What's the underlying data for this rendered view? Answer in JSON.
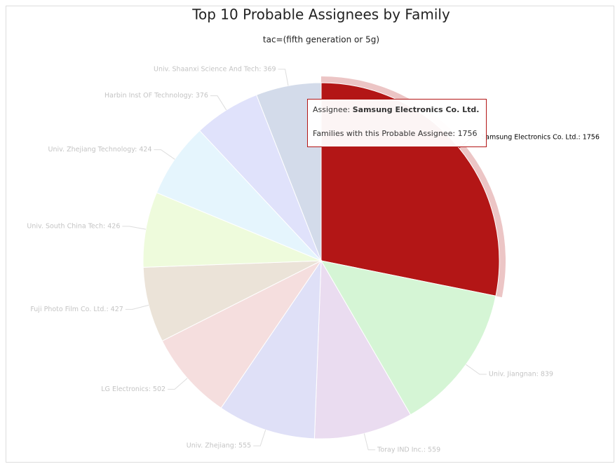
{
  "chart_data": {
    "type": "pie",
    "title": "Top 10 Probable Assignees by Family",
    "subtitle": "tac=(fifth generation or 5g)",
    "categories": [
      "Samsung Electronics Co. Ltd.",
      "Univ. Jiangnan",
      "Toray IND Inc.",
      "Univ. Zhejiang",
      "LG Electronics",
      "Fuji Photo Film Co. Ltd.",
      "Univ. South China Tech",
      "Univ. Zhejiang Technology",
      "Harbin Inst OF Technology",
      "Univ. Shaanxi Science And Tech"
    ],
    "values": [
      1756,
      839,
      559,
      555,
      502,
      427,
      426,
      424,
      376,
      369
    ],
    "value_labels": [
      "Samsung Electronics Co. Ltd.: 1756",
      "Univ. Jiangnan: 839",
      "Toray IND Inc.: 559",
      "Univ. Zhejiang: 555",
      "LG Electronics: 502",
      "Fuji Photo Film Co. Ltd.: 427",
      "Univ. South China Tech: 426",
      "Univ. Zhejiang Technology: 424",
      "Harbin Inst OF Technology: 376",
      "Univ. Shaanxi Science And Tech: 369"
    ],
    "colors": [
      "#b31616",
      "#d5f5d5",
      "#eadcf0",
      "#dfe0f7",
      "#f5dede",
      "#ebe3d8",
      "#eefbdc",
      "#e5f5fd",
      "#e0e2fb",
      "#d3dbea"
    ],
    "tooltip": {
      "assignee_label": "Assignee:",
      "families_label": "Families with this Probable Assignee:"
    }
  }
}
